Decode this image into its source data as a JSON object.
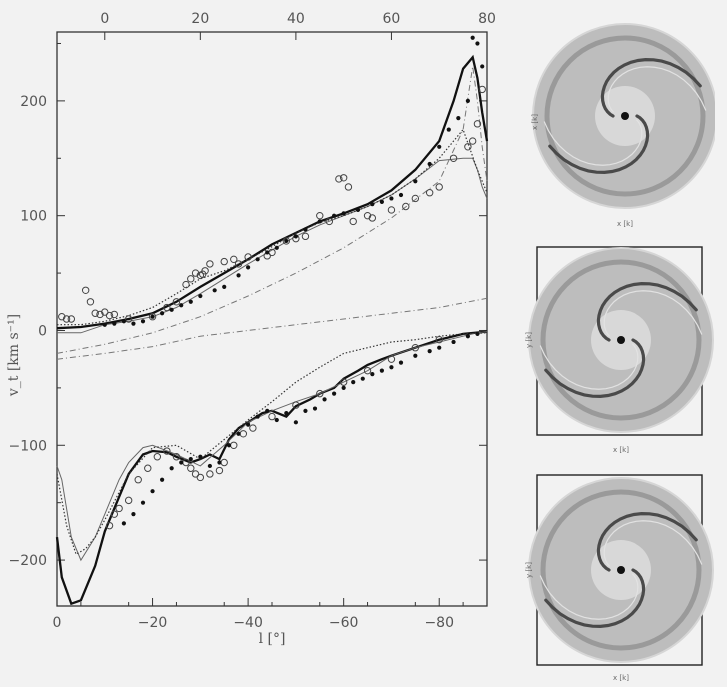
{
  "chart_data": {
    "type": "line",
    "xlabel": "l [°]",
    "ylabel": "v_t [km s⁻¹]",
    "xlim": [
      0,
      -90
    ],
    "ylim": [
      -240,
      260
    ],
    "x_ticks": [
      0,
      -20,
      -40,
      -60,
      -80
    ],
    "x_tick_labels": [
      "0",
      "−20",
      "−40",
      "−60",
      "−80"
    ],
    "x_top_ticks": [
      -90,
      -70,
      -50,
      -30,
      -10
    ],
    "x_top_tick_labels": [
      "80",
      "60",
      "40",
      "20",
      "0"
    ],
    "y_ticks": [
      200,
      100,
      0,
      -100,
      -200
    ],
    "y_tick_labels": [
      "200",
      "100",
      "0",
      "−100",
      "−200"
    ],
    "grid": false,
    "legend": "none",
    "series": [
      {
        "style": "solid-thick",
        "segments": [
          {
            "x": [
              0,
              -5,
              -10,
              -15,
              -20,
              -25,
              -30,
              -35,
              -40,
              -45,
              -50,
              -55,
              -60,
              -65,
              -70,
              -75,
              -80,
              -83,
              -85,
              -87,
              -88,
              -89,
              -90
            ],
            "y": [
              2,
              3,
              6,
              10,
              15,
              25,
              38,
              50,
              62,
              75,
              85,
              95,
              102,
              110,
              122,
              140,
              165,
              200,
              228,
              238,
              220,
              190,
              165
            ]
          },
          {
            "x": [
              0,
              -1,
              -3,
              -5,
              -8,
              -10,
              -13,
              -15,
              -18,
              -20,
              -23,
              -25,
              -28,
              -30,
              -32,
              -34,
              -36,
              -38,
              -40,
              -43,
              -45,
              -48,
              -50,
              -53,
              -55,
              -58,
              -60,
              -63,
              -65,
              -68,
              -70,
              -75,
              -80,
              -85,
              -90
            ],
            "y": [
              -180,
              -215,
              -238,
              -235,
              -205,
              -175,
              -145,
              -125,
              -108,
              -105,
              -106,
              -110,
              -115,
              -112,
              -108,
              -112,
              -95,
              -85,
              -80,
              -72,
              -70,
              -75,
              -66,
              -60,
              -55,
              -50,
              -42,
              -35,
              -30,
              -25,
              -22,
              -15,
              -8,
              -3,
              -1
            ]
          }
        ]
      },
      {
        "style": "solid-thin",
        "segments": [
          {
            "x": [
              0,
              -5,
              -10,
              -15,
              -20,
              -25,
              -30,
              -35,
              -40,
              -45,
              -50,
              -55,
              -60,
              -65,
              -70,
              -75,
              -80,
              -85,
              -87,
              -88,
              -89,
              -90
            ],
            "y": [
              -2,
              -2,
              5,
              8,
              12,
              20,
              32,
              45,
              58,
              70,
              82,
              92,
              100,
              108,
              118,
              132,
              148,
              150,
              150,
              140,
              125,
              115
            ]
          },
          {
            "x": [
              0,
              -1,
              -3,
              -5,
              -8,
              -10,
              -13,
              -15,
              -18,
              -20,
              -25,
              -30,
              -35,
              -40,
              -45,
              -50,
              -55,
              -60,
              -65,
              -70,
              -75,
              -80,
              -85,
              -88,
              -90
            ],
            "y": [
              -118,
              -130,
              -180,
              -200,
              -180,
              -160,
              -130,
              -115,
              -102,
              -100,
              -108,
              -118,
              -100,
              -80,
              -70,
              -62,
              -55,
              -45,
              -35,
              -22,
              -15,
              -10,
              -5,
              -2,
              -1
            ]
          }
        ]
      },
      {
        "style": "dashed",
        "segments": [
          {
            "x": [
              0,
              -10,
              -20,
              -30,
              -40,
              -50,
              -60,
              -70,
              -80,
              -85,
              -87,
              -88,
              -89,
              -90
            ],
            "y": [
              -20,
              -12,
              -2,
              12,
              30,
              50,
              72,
              98,
              130,
              175,
              230,
              200,
              160,
              130
            ]
          },
          {
            "x": [
              0,
              -10,
              -20,
              -30,
              -40,
              -50,
              -60,
              -70,
              -80,
              -90
            ],
            "y": [
              -25,
              -20,
              -14,
              -5,
              0,
              5,
              10,
              15,
              20,
              28
            ]
          }
        ]
      },
      {
        "style": "dotted",
        "segments": [
          {
            "x": [
              0,
              -5,
              -10,
              -15,
              -20,
              -25,
              -30,
              -35,
              -40,
              -45,
              -50,
              -55,
              -60,
              -65,
              -70,
              -75,
              -80,
              -85,
              -88,
              -90
            ],
            "y": [
              5,
              5,
              8,
              13,
              20,
              32,
              45,
              52,
              62,
              73,
              85,
              94,
              100,
              108,
              118,
              132,
              150,
              175,
              140,
              120
            ]
          },
          {
            "x": [
              0,
              -2,
              -4,
              -6,
              -8,
              -10,
              -15,
              -20,
              -25,
              -30,
              -35,
              -40,
              -45,
              -50,
              -55,
              -60,
              -65,
              -70,
              -75,
              -80,
              -85,
              -90
            ],
            "y": [
              -125,
              -170,
              -195,
              -190,
              -180,
              -165,
              -125,
              -102,
              -100,
              -112,
              -95,
              -78,
              -62,
              -45,
              -32,
              -20,
              -15,
              -10,
              -8,
              -5,
              -3,
              -2
            ]
          }
        ]
      }
    ],
    "points_open": {
      "x": [
        -1,
        -2,
        -3,
        -6,
        -7,
        -8,
        -9,
        -10,
        -11,
        -12,
        -15,
        -20,
        -23,
        -25,
        -27,
        -28,
        -29,
        -30,
        -30.5,
        -31,
        -32,
        -35,
        -37,
        -38,
        -40,
        -44,
        -45,
        -48,
        -50,
        -52,
        -55,
        -57,
        -59,
        -60,
        -61,
        -62,
        -65,
        -66,
        -70,
        -73,
        -75,
        -78,
        -80,
        -83,
        -86,
        -87,
        -88,
        -89,
        -11,
        -12,
        -13,
        -15,
        -17,
        -19,
        -21,
        -23,
        -25,
        -27,
        -28,
        -29,
        -30,
        -32,
        -34,
        -35,
        -37,
        -39,
        -41,
        -45,
        -50,
        -55,
        -60,
        -65,
        -70,
        -75,
        -80
      ],
      "y": [
        12,
        10,
        10,
        35,
        25,
        15,
        14,
        16,
        13,
        14,
        10,
        12,
        20,
        25,
        40,
        45,
        50,
        48,
        49,
        52,
        58,
        60,
        62,
        58,
        64,
        65,
        68,
        78,
        80,
        82,
        100,
        95,
        132,
        133,
        125,
        95,
        100,
        98,
        105,
        108,
        115,
        120,
        125,
        150,
        160,
        165,
        180,
        210,
        -170,
        -160,
        -155,
        -148,
        -130,
        -120,
        -110,
        -105,
        -110,
        -115,
        -120,
        -125,
        -128,
        -125,
        -122,
        -115,
        -100,
        -90,
        -85,
        -75,
        -65,
        -55,
        -45,
        -35,
        -25,
        -15,
        -8
      ]
    },
    "points_filled": {
      "x": [
        -10,
        -12,
        -14,
        -16,
        -18,
        -20,
        -22,
        -24,
        -26,
        -28,
        -30,
        -33,
        -35,
        -38,
        -40,
        -42,
        -44,
        -46,
        -48,
        -50,
        -52,
        -55,
        -58,
        -60,
        -63,
        -66,
        -68,
        -70,
        -72,
        -75,
        -78,
        -80,
        -82,
        -84,
        -86,
        -87,
        -88,
        -89,
        -14,
        -16,
        -18,
        -20,
        -22,
        -24,
        -26,
        -28,
        -30,
        -32,
        -34,
        -36,
        -38,
        -40,
        -42,
        -44,
        -46,
        -48,
        -50,
        -52,
        -54,
        -56,
        -58,
        -60,
        -62,
        -64,
        -66,
        -68,
        -70,
        -72,
        -75,
        -78,
        -80,
        -83,
        -86,
        -88
      ],
      "y": [
        5,
        6,
        8,
        6,
        8,
        12,
        15,
        18,
        22,
        25,
        30,
        35,
        38,
        48,
        55,
        62,
        68,
        72,
        78,
        82,
        88,
        95,
        100,
        102,
        105,
        110,
        112,
        115,
        118,
        130,
        145,
        160,
        175,
        185,
        200,
        255,
        250,
        230,
        -168,
        -160,
        -150,
        -140,
        -130,
        -120,
        -115,
        -112,
        -110,
        -118,
        -115,
        -100,
        -90,
        -82,
        -75,
        -70,
        -78,
        -72,
        -80,
        -70,
        -68,
        -60,
        -55,
        -50,
        -45,
        -42,
        -38,
        -35,
        -32,
        -28,
        -22,
        -18,
        -15,
        -10,
        -5,
        -3
      ]
    }
  },
  "panels": [
    {
      "left_labels": [
        "x [k]"
      ],
      "bottom_labels": [
        "x [k]"
      ]
    },
    {
      "left_labels": [
        "y [k]"
      ],
      "bottom_labels": [
        "x [k]"
      ]
    },
    {
      "left_labels": [
        "y [k]"
      ],
      "bottom_labels": [
        "x [k]"
      ]
    }
  ]
}
